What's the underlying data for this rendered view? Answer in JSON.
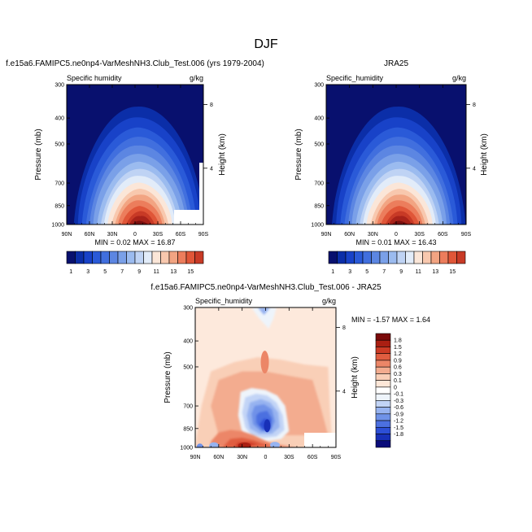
{
  "figure": {
    "title": "DJF"
  },
  "colors": {
    "contour_levels_abs": [
      "#08106e",
      "#0b2ea8",
      "#1842c8",
      "#2a5ad8",
      "#416fde",
      "#5c86e2",
      "#7aa0e8",
      "#9bbbef",
      "#bfd3f4",
      "#e2ecf9",
      "#fbe6d8",
      "#f8c8ae",
      "#f2a482",
      "#ec7d5c",
      "#e05638",
      "#c83a26",
      "#a8231a",
      "#7a0f0f"
    ],
    "contour_levels_diff": [
      "#0a0c7a",
      "#1830b8",
      "#2d4fd6",
      "#4c70e0",
      "#6f92e8",
      "#97b3f0",
      "#c2d4f6",
      "#eef4fb",
      "#ffffff",
      "#fde7d8",
      "#f9cfb7",
      "#f3ac8f",
      "#ec8667",
      "#e05d40",
      "#cc3b25",
      "#aa1f12",
      "#7a0a0a"
    ]
  },
  "chart_data": [
    {
      "type": "heatmap",
      "panel": "model",
      "title": "f.e15a6.FAMIPC5.ne0np4-VarMeshNH3.Club_Test.006 (yrs 1979-2004)",
      "left_label": "Specific humidity",
      "right_label": "g/kg",
      "ylabel": "Pressure (mb)",
      "ylabel_right": "Height (km)",
      "x_ticks": [
        "90N",
        "60N",
        "30N",
        "0",
        "30S",
        "60S",
        "90S"
      ],
      "y_ticks": [
        "300",
        "400",
        "500",
        "700",
        "850",
        "1000"
      ],
      "y_ticks_right": [
        "8",
        "4"
      ],
      "x_range": [
        90,
        -90
      ],
      "y_range": [
        1000,
        300
      ],
      "min_label": "MIN =  0.02  MAX =  16.87",
      "min": 0.02,
      "max": 16.87
    },
    {
      "type": "heatmap",
      "panel": "obs",
      "title": "JRA25",
      "left_label": "Specific_humidity",
      "right_label": "g/kg",
      "ylabel": "Pressure (mb)",
      "ylabel_right": "Height (km)",
      "x_ticks": [
        "90N",
        "60N",
        "30N",
        "0",
        "30S",
        "60S",
        "90S"
      ],
      "y_ticks": [
        "300",
        "400",
        "500",
        "700",
        "850",
        "1000"
      ],
      "y_ticks_right": [
        "8",
        "4"
      ],
      "x_range": [
        90,
        -90
      ],
      "y_range": [
        1000,
        300
      ],
      "min_label": "MIN =  0.01  MAX =  16.43",
      "min": 0.01,
      "max": 16.43
    },
    {
      "type": "heatmap",
      "panel": "diff",
      "title": "f.e15a6.FAMIPC5.ne0np4-VarMeshNH3.Club_Test.006 - JRA25",
      "left_label": "Specific_humidity",
      "right_label": "g/kg",
      "ylabel": "Pressure (mb)",
      "ylabel_right": "Height (km)",
      "x_ticks": [
        "90N",
        "60N",
        "30N",
        "0",
        "30S",
        "60S",
        "90S"
      ],
      "y_ticks": [
        "300",
        "400",
        "500",
        "700",
        "850",
        "1000"
      ],
      "y_ticks_right": [
        "8",
        "4"
      ],
      "x_range": [
        90,
        -90
      ],
      "y_range": [
        1000,
        300
      ],
      "min_label": "MIN = -1.57  MAX =  1.64",
      "min": -1.57,
      "max": 1.64
    }
  ],
  "colorbar_abs": {
    "labels": [
      "1",
      "3",
      "5",
      "7",
      "9",
      "11",
      "13",
      "15"
    ]
  },
  "colorbar_diff": {
    "labels": [
      "1.8",
      "1.5",
      "1.2",
      "0.9",
      "0.6",
      "0.3",
      "0.1",
      "0",
      "-0.1",
      "-0.3",
      "-0.6",
      "-0.9",
      "-1.2",
      "-1.5",
      "-1.8"
    ]
  }
}
